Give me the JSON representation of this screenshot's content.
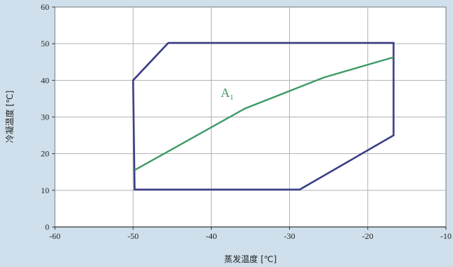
{
  "chart_data": {
    "type": "line",
    "xlabel": "蒸发温度 [℃]",
    "ylabel": "冷凝温度 [℃]",
    "xlim": [
      -60,
      -10
    ],
    "ylim": [
      0,
      60
    ],
    "x_ticks": [
      -60,
      -50,
      -40,
      -30,
      -20,
      -10
    ],
    "y_ticks": [
      0,
      10,
      20,
      30,
      40,
      50,
      60
    ],
    "grid": true,
    "series": [
      {
        "name": "",
        "color": "#3a3f86",
        "closed": true,
        "points": [
          [
            -45.5,
            50.2
          ],
          [
            -16.7,
            50.2
          ],
          [
            -16.7,
            25
          ],
          [
            -28.7,
            10.2
          ],
          [
            -49.8,
            10.2
          ],
          [
            -50,
            40
          ]
        ]
      },
      {
        "name": "",
        "color": "#3d9a68",
        "closed": false,
        "points": [
          [
            -49.8,
            15.5
          ],
          [
            -35.7,
            32.3
          ],
          [
            -25.6,
            40.8
          ],
          [
            -16.7,
            46.3
          ]
        ]
      }
    ],
    "annotations": [
      {
        "text": "A",
        "subscript": "1",
        "x": -38.8,
        "y": 35.5,
        "color": "#3d9a68"
      }
    ]
  }
}
